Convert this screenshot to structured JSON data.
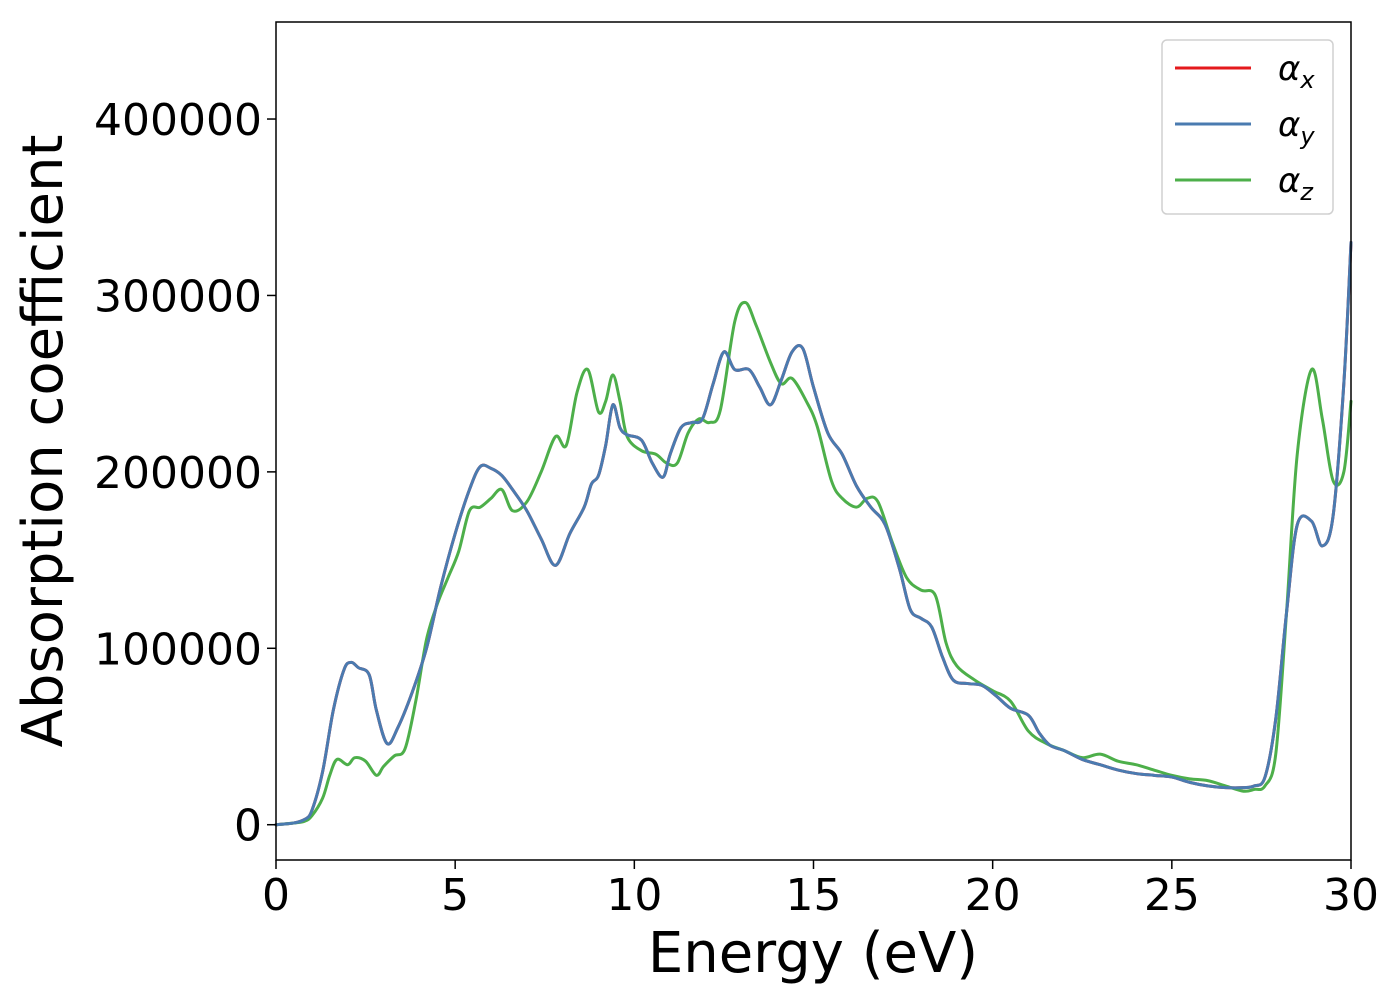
{
  "chart_data": {
    "type": "line",
    "title": "",
    "xlabel": "Energy (eV)",
    "ylabel": "Absorption coefficient",
    "xlim": [
      0,
      30
    ],
    "ylim": [
      -20000,
      455000
    ],
    "xticks": [
      0,
      5,
      10,
      15,
      20,
      25,
      30
    ],
    "xtick_labels": [
      "0",
      "5",
      "10",
      "15",
      "20",
      "25",
      "30"
    ],
    "yticks": [
      0,
      100000,
      200000,
      300000,
      400000
    ],
    "ytick_labels": [
      "0",
      "100000",
      "200000",
      "300000",
      "400000"
    ],
    "grid": false,
    "legend_position": "top-right",
    "series": [
      {
        "name": "α_x",
        "legend": {
          "base": "α",
          "sub": "x"
        },
        "color": "#e41a1c",
        "x": [
          0,
          0.5,
          0.8,
          1.0,
          1.3,
          1.6,
          1.9,
          2.1,
          2.3,
          2.6,
          2.8,
          3.1,
          3.4,
          3.8,
          4.2,
          4.6,
          5.0,
          5.4,
          5.7,
          6.0,
          6.3,
          6.6,
          7.0,
          7.4,
          7.8,
          8.2,
          8.6,
          8.8,
          9.0,
          9.2,
          9.4,
          9.6,
          9.8,
          10.2,
          10.5,
          10.8,
          11.0,
          11.3,
          11.6,
          11.9,
          12.2,
          12.5,
          12.8,
          13.2,
          13.5,
          13.8,
          14.1,
          14.4,
          14.7,
          15.0,
          15.4,
          15.8,
          16.2,
          16.6,
          17.0,
          17.4,
          17.7,
          18.0,
          18.3,
          18.6,
          18.9,
          19.3,
          19.7,
          20.1,
          20.5,
          21.0,
          21.3,
          21.6,
          22.0,
          22.5,
          23.0,
          23.5,
          24.0,
          24.5,
          25.0,
          25.5,
          26.0,
          26.5,
          27.0,
          27.3,
          27.6,
          27.9,
          28.2,
          28.5,
          28.9,
          29.2,
          29.5,
          29.8,
          30.0
        ],
        "y": [
          0,
          1000,
          3000,
          8000,
          30000,
          65000,
          88000,
          92000,
          89000,
          85000,
          65000,
          46000,
          55000,
          75000,
          100000,
          135000,
          165000,
          190000,
          203000,
          202000,
          198000,
          190000,
          178000,
          162000,
          147000,
          165000,
          180000,
          193000,
          198000,
          215000,
          238000,
          225000,
          221000,
          218000,
          205000,
          197000,
          210000,
          225000,
          228000,
          230000,
          250000,
          268000,
          258000,
          258000,
          248000,
          238000,
          252000,
          268000,
          270000,
          248000,
          222000,
          210000,
          192000,
          180000,
          170000,
          145000,
          122000,
          117000,
          112000,
          95000,
          82000,
          80000,
          79000,
          73000,
          66000,
          62000,
          52000,
          45000,
          42000,
          37000,
          34000,
          31000,
          29000,
          28000,
          27000,
          24000,
          22000,
          21000,
          21000,
          22000,
          27000,
          60000,
          120000,
          170000,
          172000,
          158000,
          175000,
          250000,
          330000
        ]
      },
      {
        "name": "α_y",
        "legend": {
          "base": "α",
          "sub": "y"
        },
        "color": "#4a7bb0",
        "x": [
          0,
          0.5,
          0.8,
          1.0,
          1.3,
          1.6,
          1.9,
          2.1,
          2.3,
          2.6,
          2.8,
          3.1,
          3.4,
          3.8,
          4.2,
          4.6,
          5.0,
          5.4,
          5.7,
          6.0,
          6.3,
          6.6,
          7.0,
          7.4,
          7.8,
          8.2,
          8.6,
          8.8,
          9.0,
          9.2,
          9.4,
          9.6,
          9.8,
          10.2,
          10.5,
          10.8,
          11.0,
          11.3,
          11.6,
          11.9,
          12.2,
          12.5,
          12.8,
          13.2,
          13.5,
          13.8,
          14.1,
          14.4,
          14.7,
          15.0,
          15.4,
          15.8,
          16.2,
          16.6,
          17.0,
          17.4,
          17.7,
          18.0,
          18.3,
          18.6,
          18.9,
          19.3,
          19.7,
          20.1,
          20.5,
          21.0,
          21.3,
          21.6,
          22.0,
          22.5,
          23.0,
          23.5,
          24.0,
          24.5,
          25.0,
          25.5,
          26.0,
          26.5,
          27.0,
          27.3,
          27.6,
          27.9,
          28.2,
          28.5,
          28.9,
          29.2,
          29.5,
          29.8,
          30.0
        ],
        "y": [
          0,
          1000,
          3000,
          8000,
          30000,
          65000,
          88000,
          92000,
          89000,
          85000,
          65000,
          46000,
          55000,
          75000,
          100000,
          135000,
          165000,
          190000,
          203000,
          202000,
          198000,
          190000,
          178000,
          162000,
          147000,
          165000,
          180000,
          193000,
          198000,
          215000,
          238000,
          225000,
          221000,
          218000,
          205000,
          197000,
          210000,
          225000,
          228000,
          230000,
          250000,
          268000,
          258000,
          258000,
          248000,
          238000,
          252000,
          268000,
          270000,
          248000,
          222000,
          210000,
          192000,
          180000,
          170000,
          145000,
          122000,
          117000,
          112000,
          95000,
          82000,
          80000,
          79000,
          73000,
          66000,
          62000,
          52000,
          45000,
          42000,
          37000,
          34000,
          31000,
          29000,
          28000,
          27000,
          24000,
          22000,
          21000,
          21000,
          22000,
          27000,
          60000,
          120000,
          170000,
          172000,
          158000,
          175000,
          250000,
          330000
        ]
      },
      {
        "name": "α_z",
        "legend": {
          "base": "α",
          "sub": "z"
        },
        "color": "#4daf4a",
        "x": [
          0,
          0.5,
          0.8,
          1.0,
          1.3,
          1.5,
          1.7,
          2.0,
          2.2,
          2.5,
          2.8,
          3.0,
          3.3,
          3.6,
          3.9,
          4.2,
          4.5,
          4.8,
          5.1,
          5.4,
          5.7,
          6.0,
          6.3,
          6.6,
          7.0,
          7.4,
          7.8,
          8.1,
          8.4,
          8.7,
          9.0,
          9.2,
          9.4,
          9.6,
          9.8,
          10.2,
          10.6,
          10.9,
          11.2,
          11.5,
          11.8,
          12.1,
          12.4,
          12.8,
          13.1,
          13.4,
          13.8,
          14.1,
          14.4,
          14.8,
          15.1,
          15.5,
          15.8,
          16.2,
          16.5,
          16.8,
          17.2,
          17.6,
          18.0,
          18.4,
          18.7,
          19.0,
          19.5,
          20.0,
          20.5,
          21.0,
          21.5,
          22.0,
          22.5,
          23.0,
          23.5,
          24.0,
          24.5,
          25.0,
          25.5,
          26.0,
          26.5,
          27.0,
          27.3,
          27.6,
          27.9,
          28.2,
          28.5,
          28.9,
          29.2,
          29.5,
          29.8,
          30.0
        ],
        "y": [
          0,
          1000,
          2000,
          5000,
          15000,
          28000,
          37000,
          34000,
          38000,
          36000,
          28000,
          33000,
          39000,
          43000,
          70000,
          105000,
          125000,
          140000,
          155000,
          178000,
          180000,
          185000,
          190000,
          178000,
          183000,
          200000,
          220000,
          215000,
          245000,
          258000,
          234000,
          240000,
          255000,
          240000,
          220000,
          212000,
          210000,
          205000,
          205000,
          222000,
          230000,
          228000,
          235000,
          285000,
          296000,
          283000,
          262000,
          250000,
          253000,
          240000,
          226000,
          195000,
          185000,
          180000,
          185000,
          183000,
          160000,
          140000,
          133000,
          130000,
          103000,
          90000,
          82000,
          76000,
          70000,
          53000,
          46000,
          42000,
          38000,
          40000,
          36000,
          34000,
          31000,
          28000,
          26000,
          25000,
          22000,
          19000,
          20000,
          22000,
          40000,
          120000,
          210000,
          258000,
          230000,
          195000,
          200000,
          240000
        ]
      }
    ]
  }
}
